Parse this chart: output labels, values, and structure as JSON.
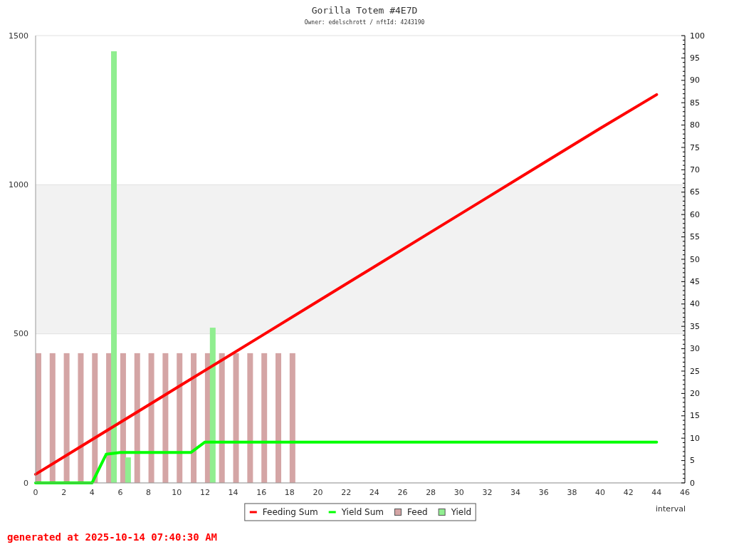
{
  "chart_data": {
    "type": "line",
    "title": "Gorilla Totem #4E7D",
    "subtitle": "Owner: edelschrott / nftId: 4243190",
    "xlabel": "interval",
    "annotations": [
      "generated at 2025-10-14 07:40:30 AM"
    ],
    "xlim": [
      0,
      46
    ],
    "xticks": [
      0,
      2,
      4,
      6,
      8,
      10,
      12,
      14,
      16,
      18,
      20,
      22,
      24,
      26,
      28,
      30,
      32,
      34,
      36,
      38,
      40,
      42,
      44,
      46
    ],
    "ylim": [
      0,
      1500
    ],
    "yticks": [
      0,
      500,
      1000,
      1500
    ],
    "y2lim": [
      0,
      100
    ],
    "y2ticks": [
      0,
      {
        "value": 1,
        "label": null
      },
      {
        "value": 2,
        "label": null
      },
      {
        "value": 3,
        "label": null
      },
      {
        "value": 4,
        "label": null
      },
      5,
      {
        "value": 6,
        "label": null
      },
      {
        "value": 7,
        "label": null
      },
      {
        "value": 8,
        "label": null
      },
      {
        "value": 9,
        "label": null
      },
      10,
      {
        "value": 11,
        "label": null
      },
      {
        "value": 12,
        "label": null
      },
      {
        "value": 13,
        "label": null
      },
      {
        "value": 14,
        "label": null
      },
      15,
      {
        "value": 16,
        "label": null
      },
      {
        "value": 17,
        "label": null
      },
      {
        "value": 18,
        "label": null
      },
      {
        "value": 19,
        "label": null
      },
      20,
      {
        "value": 21,
        "label": null
      },
      {
        "value": 22,
        "label": null
      },
      {
        "value": 23,
        "label": null
      },
      {
        "value": 24,
        "label": null
      },
      25,
      {
        "value": 26,
        "label": null
      },
      {
        "value": 27,
        "label": null
      },
      {
        "value": 28,
        "label": null
      },
      {
        "value": 29,
        "label": null
      },
      30,
      {
        "value": 31,
        "label": null
      },
      {
        "value": 32,
        "label": null
      },
      {
        "value": 33,
        "label": null
      },
      {
        "value": 34,
        "label": null
      },
      35,
      {
        "value": 36,
        "label": null
      },
      {
        "value": 37,
        "label": null
      },
      {
        "value": 38,
        "label": null
      },
      {
        "value": 39,
        "label": null
      },
      40,
      {
        "value": 41,
        "label": null
      },
      {
        "value": 42,
        "label": null
      },
      {
        "value": 43,
        "label": null
      },
      {
        "value": 44,
        "label": null
      },
      45,
      {
        "value": 46,
        "label": null
      },
      {
        "value": 47,
        "label": null
      },
      {
        "value": 48,
        "label": null
      },
      {
        "value": 49,
        "label": null
      },
      50,
      {
        "value": 51,
        "label": null
      },
      {
        "value": 52,
        "label": null
      },
      {
        "value": 53,
        "label": null
      },
      {
        "value": 54,
        "label": null
      },
      55,
      {
        "value": 56,
        "label": null
      },
      {
        "value": 57,
        "label": null
      },
      {
        "value": 58,
        "label": null
      },
      {
        "value": 59,
        "label": null
      },
      60,
      {
        "value": 61,
        "label": null
      },
      {
        "value": 62,
        "label": null
      },
      {
        "value": 63,
        "label": null
      },
      {
        "value": 64,
        "label": null
      },
      65,
      {
        "value": 66,
        "label": null
      },
      {
        "value": 67,
        "label": null
      },
      {
        "value": 68,
        "label": null
      },
      {
        "value": 69,
        "label": null
      },
      70,
      {
        "value": 71,
        "label": null
      },
      {
        "value": 72,
        "label": null
      },
      {
        "value": 73,
        "label": null
      },
      {
        "value": 74,
        "label": null
      },
      75,
      {
        "value": 76,
        "label": null
      },
      {
        "value": 77,
        "label": null
      },
      {
        "value": 78,
        "label": null
      },
      {
        "value": 79,
        "label": null
      },
      80,
      {
        "value": 81,
        "label": null
      },
      {
        "value": 82,
        "label": null
      },
      {
        "value": 83,
        "label": null
      },
      {
        "value": 84,
        "label": null
      },
      85,
      {
        "value": 86,
        "label": null
      },
      {
        "value": 87,
        "label": null
      },
      {
        "value": 88,
        "label": null
      },
      {
        "value": 89,
        "label": null
      },
      90,
      {
        "value": 91,
        "label": null
      },
      {
        "value": 92,
        "label": null
      },
      {
        "value": 93,
        "label": null
      },
      {
        "value": 94,
        "label": null
      },
      95,
      {
        "value": 96,
        "label": null
      },
      {
        "value": 97,
        "label": null
      },
      {
        "value": 98,
        "label": null
      },
      {
        "value": 99,
        "label": null
      },
      100
    ],
    "grid": "y",
    "legend": "bottom",
    "bands": [
      {
        "axis": "y",
        "from": 500,
        "to": 1000,
        "color": "#f2f2f2"
      }
    ],
    "series": [
      {
        "name": "Feeding Sum",
        "axis": "y",
        "color": "#ff0000",
        "x": [
          0,
          4,
          8,
          12,
          16,
          20,
          24,
          28,
          32,
          36,
          40,
          44
        ],
        "values": [
          29,
          145,
          261,
          377,
          493,
          609,
          725,
          841,
          957,
          1073,
          1189,
          1302
        ]
      },
      {
        "name": "Yield Sum",
        "axis": "y",
        "color": "#00ff00",
        "x": [
          0,
          4,
          5,
          6,
          11,
          12,
          44
        ],
        "values": [
          0,
          0,
          96,
          102,
          102,
          137,
          137
        ]
      },
      {
        "name": "Feed",
        "type": "bar",
        "axis": "y2",
        "color": "#d4a5a5",
        "x": [
          0.2,
          1.2,
          2.2,
          3.2,
          4.2,
          5.2,
          6.2,
          7.2,
          8.2,
          9.2,
          10.2,
          11.2,
          12.2,
          13.2,
          14.2,
          15.2,
          16.2,
          17.2,
          18.2
        ],
        "values": [
          29,
          29,
          29,
          29,
          29,
          29,
          29,
          29,
          29,
          29,
          29,
          29,
          29,
          29,
          29,
          29,
          29,
          29,
          29
        ]
      },
      {
        "name": "Yield",
        "type": "bar",
        "axis": "y2",
        "color": "#90ee90",
        "x": [
          5.55,
          6.55,
          12.55
        ],
        "values": [
          96.5,
          5.7,
          34.7
        ]
      }
    ]
  }
}
